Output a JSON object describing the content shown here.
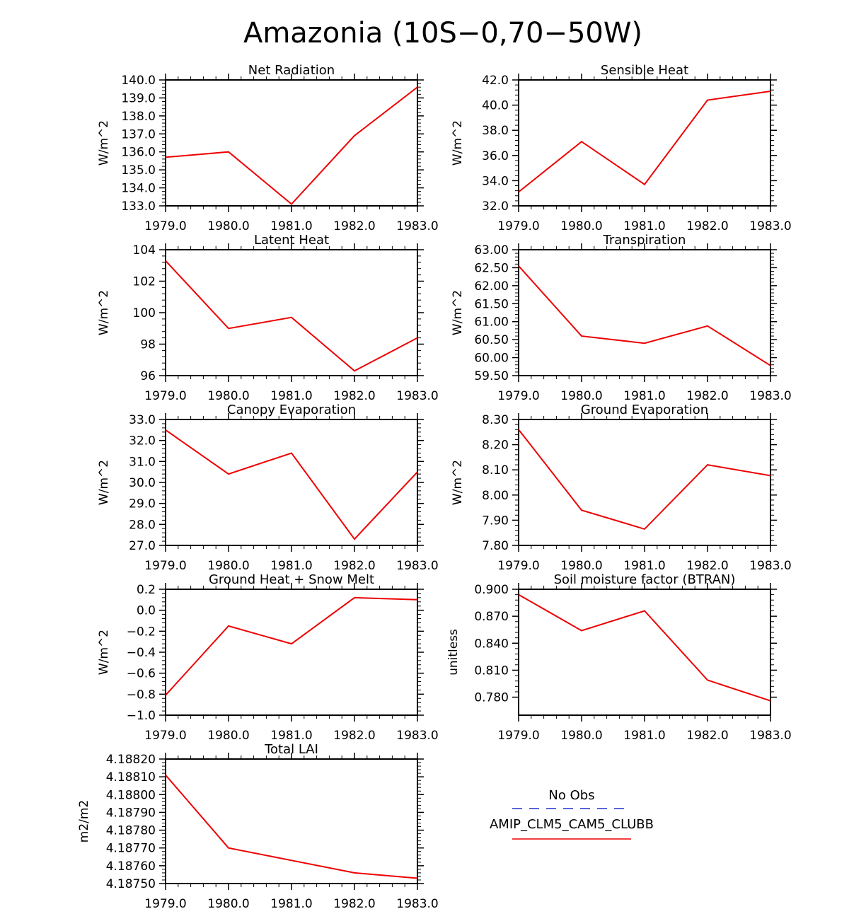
{
  "figure": {
    "title": "Amazonia (10S−0,70−50W)"
  },
  "legend": {
    "items": [
      {
        "label": "No Obs",
        "color": "#2233cc",
        "dashed": true
      },
      {
        "label": "AMIP_CLM5_CAM5_CLUBB",
        "color": "#ee0000",
        "dashed": false
      }
    ]
  },
  "chart_data": [
    {
      "type": "line",
      "title": "Net Radiation",
      "ylabel": "W/m^2",
      "x": [
        1979,
        1980,
        1981,
        1982,
        1983
      ],
      "xticks": [
        "1979.0",
        "1980.0",
        "1981.0",
        "1982.0",
        "1983.0"
      ],
      "ylim": [
        133.0,
        140.0
      ],
      "yticks": [
        "133.0",
        "134.0",
        "135.0",
        "136.0",
        "137.0",
        "138.0",
        "139.0",
        "140.0"
      ],
      "series": [
        {
          "name": "AMIP_CLM5_CAM5_CLUBB",
          "color": "#ee0000",
          "values": [
            135.7,
            136.0,
            133.1,
            136.9,
            139.6
          ]
        }
      ]
    },
    {
      "type": "line",
      "title": "Sensible Heat",
      "ylabel": "W/m^2",
      "x": [
        1979,
        1980,
        1981,
        1982,
        1983
      ],
      "xticks": [
        "1979.0",
        "1980.0",
        "1981.0",
        "1982.0",
        "1983.0"
      ],
      "ylim": [
        32.0,
        42.0
      ],
      "yticks": [
        "32.0",
        "34.0",
        "36.0",
        "38.0",
        "40.0",
        "42.0"
      ],
      "series": [
        {
          "name": "AMIP_CLM5_CAM5_CLUBB",
          "color": "#ee0000",
          "values": [
            33.1,
            37.1,
            33.7,
            40.4,
            41.1
          ]
        }
      ]
    },
    {
      "type": "line",
      "title": "Latent Heat",
      "ylabel": "W/m^2",
      "x": [
        1979,
        1980,
        1981,
        1982,
        1983
      ],
      "xticks": [
        "1979.0",
        "1980.0",
        "1981.0",
        "1982.0",
        "1983.0"
      ],
      "ylim": [
        96,
        104
      ],
      "yticks": [
        "96",
        "98",
        "100",
        "102",
        "104"
      ],
      "series": [
        {
          "name": "AMIP_CLM5_CAM5_CLUBB",
          "color": "#ee0000",
          "values": [
            103.3,
            99.0,
            99.7,
            96.3,
            98.4
          ]
        }
      ]
    },
    {
      "type": "line",
      "title": "Transpiration",
      "ylabel": "W/m^2",
      "x": [
        1979,
        1980,
        1981,
        1982,
        1983
      ],
      "xticks": [
        "1979.0",
        "1980.0",
        "1981.0",
        "1982.0",
        "1983.0"
      ],
      "ylim": [
        59.5,
        63.0
      ],
      "yticks": [
        "59.50",
        "60.00",
        "60.50",
        "61.00",
        "61.50",
        "62.00",
        "62.50",
        "63.00"
      ],
      "series": [
        {
          "name": "AMIP_CLM5_CAM5_CLUBB",
          "color": "#ee0000",
          "values": [
            62.55,
            60.6,
            60.4,
            60.88,
            59.78
          ]
        }
      ]
    },
    {
      "type": "line",
      "title": "Canopy Evaporation",
      "ylabel": "W/m^2",
      "x": [
        1979,
        1980,
        1981,
        1982,
        1983
      ],
      "xticks": [
        "1979.0",
        "1980.0",
        "1981.0",
        "1982.0",
        "1983.0"
      ],
      "ylim": [
        27.0,
        33.0
      ],
      "yticks": [
        "27.0",
        "28.0",
        "29.0",
        "30.0",
        "31.0",
        "32.0",
        "33.0"
      ],
      "series": [
        {
          "name": "AMIP_CLM5_CAM5_CLUBB",
          "color": "#ee0000",
          "values": [
            32.5,
            30.4,
            31.4,
            27.3,
            30.5
          ]
        }
      ]
    },
    {
      "type": "line",
      "title": "Ground Evaporation",
      "ylabel": "W/m^2",
      "x": [
        1979,
        1980,
        1981,
        1982,
        1983
      ],
      "xticks": [
        "1979.0",
        "1980.0",
        "1981.0",
        "1982.0",
        "1983.0"
      ],
      "ylim": [
        7.8,
        8.3
      ],
      "yticks": [
        "7.80",
        "7.90",
        "8.00",
        "8.10",
        "8.20",
        "8.30"
      ],
      "series": [
        {
          "name": "AMIP_CLM5_CAM5_CLUBB",
          "color": "#ee0000",
          "values": [
            8.26,
            7.94,
            7.865,
            8.12,
            8.077
          ]
        }
      ]
    },
    {
      "type": "line",
      "title": "Ground Heat + Snow Melt",
      "ylabel": "W/m^2",
      "x": [
        1979,
        1980,
        1981,
        1982,
        1983
      ],
      "xticks": [
        "1979.0",
        "1980.0",
        "1981.0",
        "1982.0",
        "1983.0"
      ],
      "ylim": [
        -1.0,
        0.2
      ],
      "yticks": [
        "−1.0",
        "−0.8",
        "−0.6",
        "−0.4",
        "−0.2",
        "0.0",
        "0.2"
      ],
      "series": [
        {
          "name": "AMIP_CLM5_CAM5_CLUBB",
          "color": "#ee0000",
          "values": [
            -0.81,
            -0.15,
            -0.32,
            0.12,
            0.1
          ]
        }
      ]
    },
    {
      "type": "line",
      "title": "Soil moisture factor (BTRAN)",
      "ylabel": "unitless",
      "x": [
        1979,
        1980,
        1981,
        1982,
        1983
      ],
      "xticks": [
        "1979.0",
        "1980.0",
        "1981.0",
        "1982.0",
        "1983.0"
      ],
      "ylim": [
        0.76,
        0.9
      ],
      "yticks": [
        "0.780",
        "0.810",
        "0.840",
        "0.870",
        "0.900"
      ],
      "series": [
        {
          "name": "AMIP_CLM5_CAM5_CLUBB",
          "color": "#ee0000",
          "values": [
            0.894,
            0.854,
            0.876,
            0.799,
            0.776
          ]
        }
      ]
    },
    {
      "type": "line",
      "title": "Total LAI",
      "ylabel": "m2/m2",
      "x": [
        1979,
        1980,
        1981,
        1982,
        1983
      ],
      "xticks": [
        "1979.0",
        "1980.0",
        "1981.0",
        "1982.0",
        "1983.0"
      ],
      "ylim": [
        4.1875,
        4.1882
      ],
      "yticks": [
        "4.18750",
        "4.18760",
        "4.18770",
        "4.18780",
        "4.18790",
        "4.18800",
        "4.18810",
        "4.18820"
      ],
      "series": [
        {
          "name": "AMIP_CLM5_CAM5_CLUBB",
          "color": "#ee0000",
          "values": [
            4.18811,
            4.1877,
            4.18763,
            4.18756,
            4.18753
          ]
        }
      ]
    }
  ]
}
